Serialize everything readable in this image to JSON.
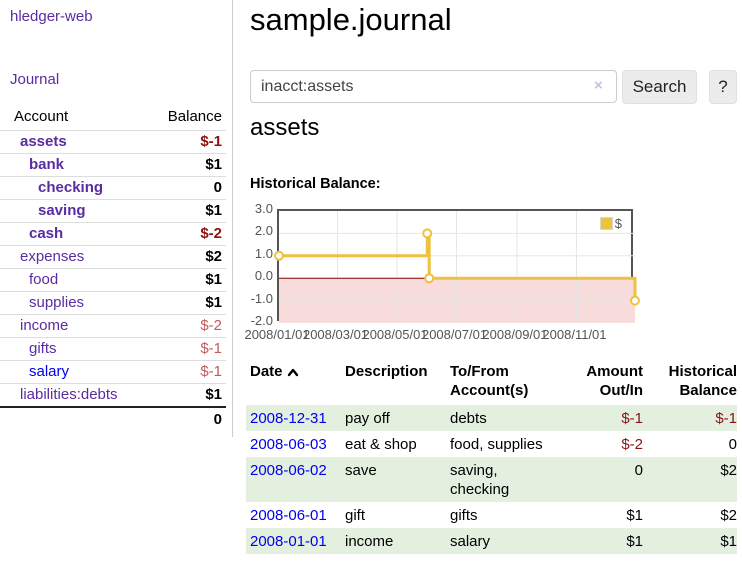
{
  "sidebar": {
    "app_title": "hledger-web",
    "journal_link": "Journal",
    "accounts": {
      "header": {
        "account": "Account",
        "balance": "Balance"
      },
      "rows": [
        {
          "name": "assets",
          "balance": "$-1"
        },
        {
          "name": "bank",
          "balance": "$1"
        },
        {
          "name": "checking",
          "balance": "0"
        },
        {
          "name": "saving",
          "balance": "$1"
        },
        {
          "name": "cash",
          "balance": "$-2"
        },
        {
          "name": "expenses",
          "balance": "$2"
        },
        {
          "name": "food",
          "balance": "$1"
        },
        {
          "name": "supplies",
          "balance": "$1"
        },
        {
          "name": "income",
          "balance": "$-2"
        },
        {
          "name": "gifts",
          "balance": "$-1"
        },
        {
          "name": "salary",
          "balance": "$-1"
        },
        {
          "name": "liabilities:debts",
          "balance": "$1"
        }
      ],
      "total": "0"
    }
  },
  "main": {
    "title": "sample.journal",
    "search": {
      "value": "inacct:assets",
      "clear_icon": "×",
      "search_button": "Search",
      "help_button": "?"
    },
    "account_heading": "assets",
    "register": {
      "headers": {
        "date": "Date",
        "description": "Description",
        "tofrom_line1": "To/From",
        "tofrom_line2": "Account(s)",
        "amount_line1": "Amount",
        "amount_line2": "Out/In",
        "balance_line1": "Historical",
        "balance_line2": "Balance"
      },
      "rows": [
        {
          "date": "2008-12-31",
          "description": "pay off",
          "tofrom": "debts",
          "amount": "$-1",
          "balance": "$-1"
        },
        {
          "date": "2008-06-03",
          "description": "eat & shop",
          "tofrom": "food, supplies",
          "amount": "$-2",
          "balance": "0"
        },
        {
          "date": "2008-06-02",
          "description": "save",
          "tofrom": "saving, checking",
          "amount": "0",
          "balance": "$2"
        },
        {
          "date": "2008-06-01",
          "description": "gift",
          "tofrom": "gifts",
          "amount": "$1",
          "balance": "$2"
        },
        {
          "date": "2008-01-01",
          "description": "income",
          "tofrom": "salary",
          "amount": "$1",
          "balance": "$1"
        }
      ]
    }
  },
  "chart_data": {
    "type": "line",
    "title": "Historical Balance:",
    "step": true,
    "x_range": [
      "2008-01-01",
      "2008-12-31"
    ],
    "y_range": [
      -2,
      3
    ],
    "x_ticks": [
      "2008/01/01",
      "2008/03/01",
      "2008/05/01",
      "2008/07/01",
      "2008/09/01",
      "2008/11/01"
    ],
    "y_ticks": [
      3,
      2,
      1,
      0,
      -1,
      -2
    ],
    "series": [
      {
        "name": "$",
        "color": "#edc240",
        "points": [
          [
            "2008-01-01",
            1
          ],
          [
            "2008-06-01",
            2
          ],
          [
            "2008-06-03",
            0
          ],
          [
            "2008-12-31",
            -1
          ]
        ]
      }
    ],
    "grid_color": "#e6e6e6",
    "negative_region_color": "#f8dcdc",
    "zero_line_color": "#8b0000",
    "legend_position": "top-right"
  }
}
